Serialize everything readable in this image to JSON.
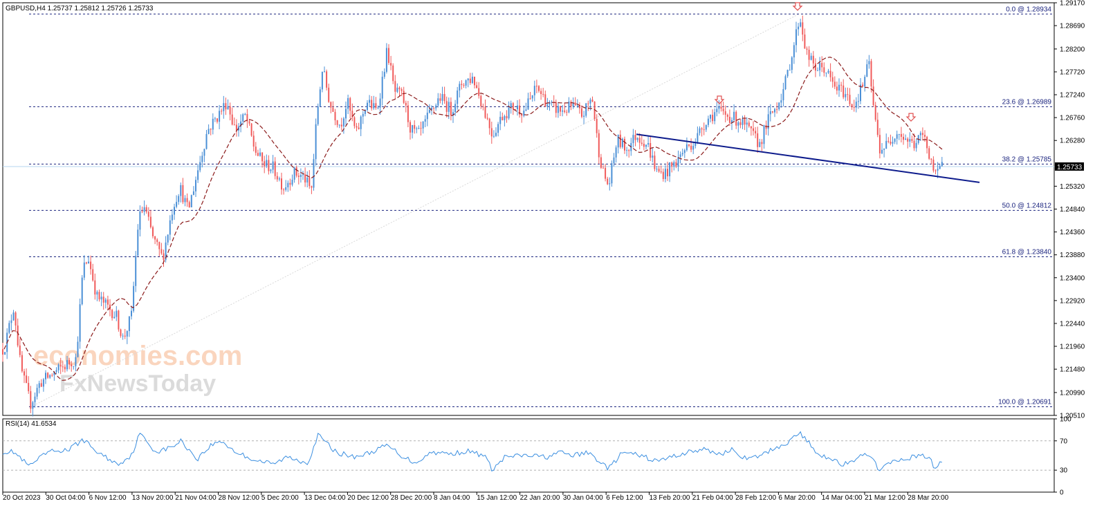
{
  "chart_title": "GBPUSD,H4  1.25737 1.25812 1.25726 1.25733",
  "watermark": {
    "line1": "economies.com",
    "line2": "FxNewsToday"
  },
  "current_price": "1.25733",
  "colors": {
    "bull": "#4a8fd6",
    "bear": "#f05a5a",
    "ma": "#8b1a1a",
    "fib": "#1a237e",
    "trend": "#0d1b8c",
    "rsi": "#3a8ee0",
    "arrow": "#e05050",
    "price_line": "#b6d6ef"
  },
  "fib_labels": [
    {
      "level": 0.0,
      "price": 1.28934,
      "label": "0.0 @ 1.28934"
    },
    {
      "level": 23.6,
      "price": 1.26989,
      "label": "23.6 @ 1.26989"
    },
    {
      "level": 38.2,
      "price": 1.25785,
      "label": "38.2 @ 1.25785"
    },
    {
      "level": 50.0,
      "price": 1.24812,
      "label": "50.0 @ 1.24812"
    },
    {
      "level": 61.8,
      "price": 1.2384,
      "label": "61.8 @ 1.23840"
    },
    {
      "level": 100.0,
      "price": 1.20691,
      "label": "100.0 @ 1.20691"
    }
  ],
  "price_axis": [
    "1.29170",
    "1.28690",
    "1.28200",
    "1.27720",
    "1.27240",
    "1.26760",
    "1.26280",
    "1.25320",
    "1.24840",
    "1.24360",
    "1.23880",
    "1.23400",
    "1.22920",
    "1.22440",
    "1.21960",
    "1.21480",
    "1.20990",
    "1.20510"
  ],
  "rsi": {
    "label": "RSI(14) 41.6534",
    "levels": [
      "70",
      "30"
    ],
    "axis": [
      "100",
      "70",
      "30",
      "0"
    ]
  },
  "time_axis": [
    "20 Oct 2023",
    "30 Oct 04:00",
    "6 Nov 12:00",
    "13 Nov 20:00",
    "21 Nov 04:00",
    "28 Nov 12:00",
    "5 Dec 20:00",
    "13 Dec 04:00",
    "20 Dec 12:00",
    "28 Dec 20:00",
    "8 Jan 04:00",
    "15 Jan 12:00",
    "22 Jan 20:00",
    "30 Jan 04:00",
    "6 Feb 12:00",
    "13 Feb 20:00",
    "21 Feb 04:00",
    "28 Feb 12:00",
    "6 Mar 20:00",
    "14 Mar 04:00",
    "21 Mar 12:00",
    "28 Mar 20:00"
  ],
  "chart_data": {
    "type": "line",
    "title": "GBPUSD,H4",
    "ylim": [
      1.2051,
      1.2917
    ],
    "x": [
      "20 Oct 2023",
      "30 Oct 04:00",
      "6 Nov 12:00",
      "13 Nov 20:00",
      "21 Nov 04:00",
      "28 Nov 12:00",
      "5 Dec 20:00",
      "13 Dec 04:00",
      "20 Dec 12:00",
      "28 Dec 20:00",
      "8 Jan 04:00",
      "15 Jan 12:00",
      "22 Jan 20:00",
      "30 Jan 04:00",
      "6 Feb 12:00",
      "13 Feb 20:00",
      "21 Feb 04:00",
      "28 Feb 12:00",
      "6 Mar 20:00",
      "14 Mar 04:00",
      "21 Mar 12:00",
      "28 Mar 20:00"
    ],
    "series": [
      {
        "values": [
          1.215,
          1.211,
          1.235,
          1.223,
          1.26,
          1.269,
          1.257,
          1.268,
          1.269,
          1.264,
          1.27,
          1.265,
          1.271,
          1.266,
          1.259,
          1.257,
          1.267,
          1.266,
          1.283,
          1.273,
          1.261,
          1.256
        ]
      }
    ],
    "fib_retracement": {
      "high": 1.28934,
      "low": 1.20691
    },
    "last": 1.25733,
    "rsi_last": 41.6534,
    "rsi_ylim": [
      0,
      100
    ]
  }
}
